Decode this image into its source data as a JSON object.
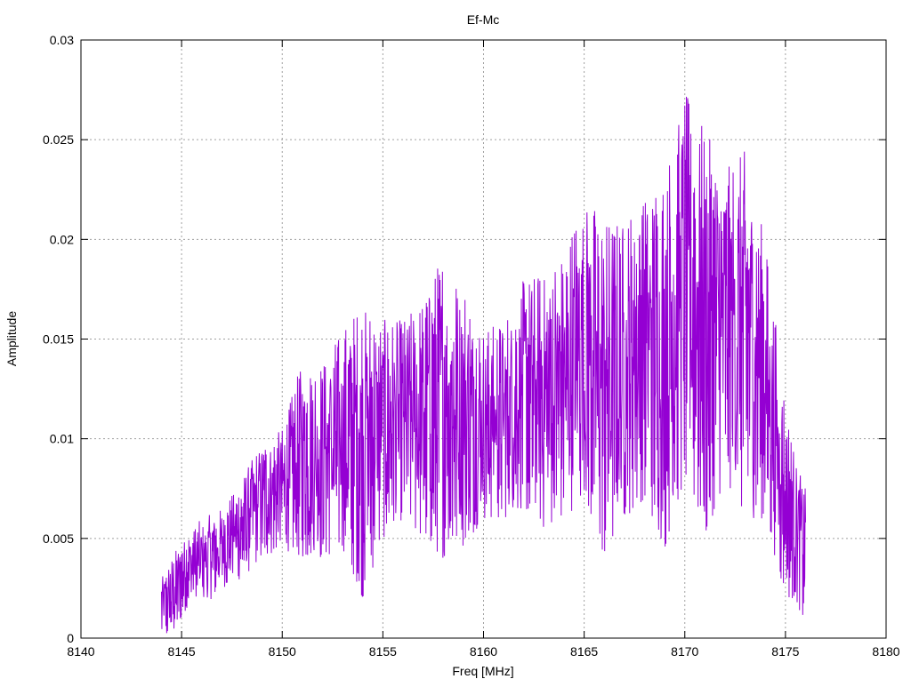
{
  "chart_data": {
    "type": "line",
    "title": "Ef-Mc",
    "xlabel": "Freq [MHz]",
    "ylabel": "Amplitude",
    "xlim": [
      8140,
      8180
    ],
    "ylim": [
      0,
      0.03
    ],
    "x_ticks": [
      8140,
      8145,
      8150,
      8155,
      8160,
      8165,
      8170,
      8175,
      8180
    ],
    "y_ticks": [
      0,
      0.005,
      0.01,
      0.015,
      0.02,
      0.025,
      0.03
    ],
    "x_tick_labels": [
      "8140",
      "8145",
      "8150",
      "8155",
      "8160",
      "8165",
      "8170",
      "8175",
      "8180"
    ],
    "y_tick_labels": [
      "0",
      "0.005",
      "0.01",
      "0.015",
      "0.02",
      "0.025",
      "0.03"
    ],
    "grid": true,
    "legend": "none",
    "series": [
      {
        "color": "#9400d3",
        "x_start": 8144.0,
        "x_end": 8176.0,
        "envelope": {
          "x": [
            8144.0,
            8144.5,
            8145.0,
            8145.5,
            8146.0,
            8147.0,
            8148.0,
            8149.0,
            8150.0,
            8151.0,
            8152.0,
            8153.0,
            8154.0,
            8155.0,
            8156.0,
            8157.0,
            8158.0,
            8159.0,
            8160.0,
            8161.0,
            8162.0,
            8163.0,
            8164.0,
            8165.0,
            8166.0,
            8167.0,
            8168.0,
            8169.0,
            8170.0,
            8171.0,
            8172.0,
            8173.0,
            8174.0,
            8175.0,
            8175.5,
            8176.0
          ],
          "low": [
            0.0,
            0.0,
            0.001,
            0.002,
            0.0015,
            0.0025,
            0.003,
            0.004,
            0.0045,
            0.004,
            0.004,
            0.0045,
            0.002,
            0.005,
            0.006,
            0.005,
            0.004,
            0.0045,
            0.006,
            0.006,
            0.0065,
            0.0055,
            0.006,
            0.007,
            0.004,
            0.006,
            0.007,
            0.0045,
            0.008,
            0.005,
            0.008,
            0.006,
            0.006,
            0.002,
            0.002,
            0.0005
          ],
          "high": [
            0.003,
            0.004,
            0.005,
            0.0055,
            0.006,
            0.0065,
            0.008,
            0.01,
            0.0105,
            0.014,
            0.014,
            0.0155,
            0.017,
            0.016,
            0.016,
            0.017,
            0.0195,
            0.018,
            0.0155,
            0.016,
            0.018,
            0.0185,
            0.0195,
            0.0225,
            0.021,
            0.021,
            0.0225,
            0.0235,
            0.0275,
            0.0255,
            0.0235,
            0.0245,
            0.02,
            0.012,
            0.009,
            0.0075
          ]
        }
      }
    ]
  }
}
